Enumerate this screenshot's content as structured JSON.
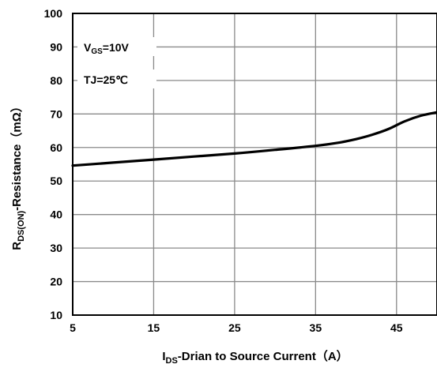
{
  "chart_data": {
    "type": "line",
    "title": "",
    "xlabel": {
      "main": "I",
      "sub": "DS",
      "rest": "-Drian to Source  Current（A）"
    },
    "ylabel": {
      "main": "R",
      "sub": "DS(ON)",
      "rest": "-Resistance（mΩ）"
    },
    "xlim": [
      5,
      50
    ],
    "ylim": [
      10,
      100
    ],
    "x_ticks": [
      5,
      15,
      25,
      35,
      45
    ],
    "y_ticks": [
      10,
      20,
      30,
      40,
      50,
      60,
      70,
      80,
      90,
      100
    ],
    "grid": true,
    "annotations": {
      "vgs_main": "V",
      "vgs_sub": "GS",
      "vgs_rest": "=10V",
      "tj": "TJ=25℃"
    },
    "series": [
      {
        "x": [
          5,
          10,
          15,
          20,
          25,
          30,
          35,
          38,
          40,
          42,
          44,
          46,
          48,
          50
        ],
        "y": [
          54.6,
          55.5,
          56.4,
          57.3,
          58.2,
          59.3,
          60.5,
          61.5,
          62.5,
          63.8,
          65.5,
          67.8,
          69.5,
          70.5
        ]
      }
    ]
  }
}
